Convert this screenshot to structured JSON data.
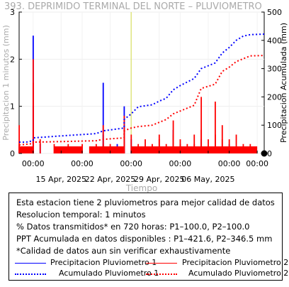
{
  "chart_data": {
    "type": "line",
    "title": "393. DEPRIMIDO TERMINAL DEL NORTE – PLUVIOMETRO",
    "xlabel": "Tiempo",
    "ylabel_left": "Precipitacion 1 minutos (mm)",
    "ylabel_right": "Precipitacion Acumulada (mm)",
    "ylim_left": [
      0,
      3
    ],
    "ylim_right": [
      0,
      500
    ],
    "left_ticks": [
      "0",
      "1",
      "2",
      "3"
    ],
    "right_ticks": [
      "0",
      "100",
      "200",
      "300",
      "400",
      "500"
    ],
    "x_range": [
      "2025-04-09",
      "2025-05-14"
    ],
    "x_ticks": [
      {
        "date": "2025-04-11",
        "top": "00:00",
        "bottom": ""
      },
      {
        "date": "2025-04-15",
        "top": "",
        "bottom": "15 Apr, 2025"
      },
      {
        "date": "2025-04-18",
        "top": "00:00",
        "bottom": ""
      },
      {
        "date": "2025-04-22",
        "top": "",
        "bottom": "22 Apr, 2025"
      },
      {
        "date": "2025-04-25",
        "top": "00:00",
        "bottom": ""
      },
      {
        "date": "2025-04-29",
        "top": "",
        "bottom": "29 Apr, 2025"
      },
      {
        "date": "2025-05-02",
        "top": "00:00",
        "bottom": ""
      },
      {
        "date": "2025-05-06",
        "top": "",
        "bottom": "06 May, 2025"
      },
      {
        "date": "2025-05-09",
        "top": "00:00",
        "bottom": ""
      },
      {
        "date": "2025-05-13",
        "top": "00:00",
        "bottom": ""
      }
    ],
    "grid": true,
    "marker_date": "2025-04-25",
    "series": [
      {
        "name": "Precipitacion Pluviometro 1",
        "axis": "left",
        "style": "bars",
        "color": "#0000ff",
        "points": [
          [
            "2025-04-09",
            0.15
          ],
          [
            "2025-04-11",
            2.5
          ],
          [
            "2025-04-11",
            1.0
          ],
          [
            "2025-04-11",
            0.3
          ],
          [
            "2025-04-12",
            0.2
          ],
          [
            "2025-04-21",
            1.5
          ],
          [
            "2025-04-21",
            0.4
          ],
          [
            "2025-04-23",
            0.2
          ],
          [
            "2025-04-24",
            0.6
          ],
          [
            "2025-04-24",
            1.0
          ],
          [
            "2025-04-25",
            0.3
          ],
          [
            "2025-05-01",
            0.5
          ],
          [
            "2025-05-02",
            0.2
          ],
          [
            "2025-05-05",
            0.3
          ],
          [
            "2025-05-09",
            0.2
          ]
        ]
      },
      {
        "name": "Precipitacion Pluviometro 2",
        "axis": "left",
        "style": "bars",
        "color": "#ff0000",
        "points": [
          [
            "2025-04-09",
            0.2
          ],
          [
            "2025-04-09",
            0.6
          ],
          [
            "2025-04-11",
            2.0
          ],
          [
            "2025-04-11",
            1.5
          ],
          [
            "2025-04-11",
            0.5
          ],
          [
            "2025-04-12",
            0.3
          ],
          [
            "2025-04-14",
            0.2
          ],
          [
            "2025-04-16",
            0.2
          ],
          [
            "2025-04-18",
            0.2
          ],
          [
            "2025-04-20",
            0.2
          ],
          [
            "2025-04-21",
            0.2
          ],
          [
            "2025-04-21",
            0.6
          ],
          [
            "2025-04-22",
            0.2
          ],
          [
            "2025-04-24",
            0.8
          ],
          [
            "2025-04-24",
            0.5
          ],
          [
            "2025-04-25",
            0.4
          ],
          [
            "2025-04-26",
            0.2
          ],
          [
            "2025-04-27",
            0.3
          ],
          [
            "2025-04-28",
            0.2
          ],
          [
            "2025-04-29",
            0.4
          ],
          [
            "2025-04-29",
            0.3
          ],
          [
            "2025-04-30",
            0.2
          ],
          [
            "2025-05-01",
            0.7
          ],
          [
            "2025-05-01",
            0.4
          ],
          [
            "2025-05-02",
            0.3
          ],
          [
            "2025-05-02",
            0.2
          ],
          [
            "2025-05-03",
            0.2
          ],
          [
            "2025-05-04",
            0.4
          ],
          [
            "2025-05-04",
            0.2
          ],
          [
            "2025-05-05",
            1.2
          ],
          [
            "2025-05-05",
            0.5
          ],
          [
            "2025-05-06",
            0.3
          ],
          [
            "2025-05-07",
            1.1
          ],
          [
            "2025-05-07",
            0.4
          ],
          [
            "2025-05-08",
            0.6
          ],
          [
            "2025-05-08",
            0.3
          ],
          [
            "2025-05-09",
            0.3
          ],
          [
            "2025-05-10",
            0.4
          ],
          [
            "2025-05-11",
            0.2
          ],
          [
            "2025-05-12",
            0.2
          ]
        ],
        "runs": [
          [
            "2025-04-09",
            "2025-04-11"
          ],
          [
            "2025-04-14",
            "2025-04-16"
          ],
          [
            "2025-04-16",
            "2025-04-18"
          ],
          [
            "2025-04-19",
            "2025-04-21"
          ],
          [
            "2025-04-21",
            "2025-04-24"
          ],
          [
            "2025-04-25",
            "2025-04-27"
          ],
          [
            "2025-04-27",
            "2025-04-30"
          ],
          [
            "2025-04-30",
            "2025-05-03"
          ],
          [
            "2025-05-03",
            "2025-05-05"
          ],
          [
            "2025-05-05",
            "2025-05-09"
          ],
          [
            "2025-05-09",
            "2025-05-11"
          ],
          [
            "2025-05-11",
            "2025-05-13"
          ]
        ],
        "run_value": 0.15
      },
      {
        "name": "Acumulado Pluviometro 1",
        "axis": "right",
        "style": "dotted",
        "color": "#0000ff",
        "points": [
          [
            "2025-04-09",
            40
          ],
          [
            "2025-04-10",
            40
          ],
          [
            "2025-04-11",
            45
          ],
          [
            "2025-04-11",
            55
          ],
          [
            "2025-04-15",
            62
          ],
          [
            "2025-04-20",
            70
          ],
          [
            "2025-04-21",
            80
          ],
          [
            "2025-04-24",
            90
          ],
          [
            "2025-04-24",
            120
          ],
          [
            "2025-04-25",
            140
          ],
          [
            "2025-04-26",
            165
          ],
          [
            "2025-04-28",
            172
          ],
          [
            "2025-04-29",
            185
          ],
          [
            "2025-04-30",
            195
          ],
          [
            "2025-05-01",
            225
          ],
          [
            "2025-05-02",
            240
          ],
          [
            "2025-05-04",
            265
          ],
          [
            "2025-05-05",
            300
          ],
          [
            "2025-05-07",
            320
          ],
          [
            "2025-05-08",
            355
          ],
          [
            "2025-05-09",
            375
          ],
          [
            "2025-05-10",
            400
          ],
          [
            "2025-05-11",
            415
          ],
          [
            "2025-05-12",
            420
          ],
          [
            "2025-05-14",
            422
          ]
        ]
      },
      {
        "name": "Acumulado Pluviometro 2",
        "axis": "right",
        "style": "dotted",
        "color": "#ff0000",
        "points": [
          [
            "2025-04-09",
            30
          ],
          [
            "2025-04-11",
            35
          ],
          [
            "2025-04-11",
            40
          ],
          [
            "2025-04-15",
            42
          ],
          [
            "2025-04-20",
            45
          ],
          [
            "2025-04-21",
            50
          ],
          [
            "2025-04-24",
            55
          ],
          [
            "2025-04-24",
            80
          ],
          [
            "2025-04-25",
            90
          ],
          [
            "2025-04-26",
            95
          ],
          [
            "2025-04-28",
            100
          ],
          [
            "2025-04-29",
            110
          ],
          [
            "2025-04-30",
            120
          ],
          [
            "2025-05-01",
            140
          ],
          [
            "2025-05-02",
            150
          ],
          [
            "2025-05-04",
            170
          ],
          [
            "2025-05-05",
            230
          ],
          [
            "2025-05-07",
            245
          ],
          [
            "2025-05-08",
            290
          ],
          [
            "2025-05-09",
            305
          ],
          [
            "2025-05-10",
            325
          ],
          [
            "2025-05-11",
            335
          ],
          [
            "2025-05-12",
            345
          ],
          [
            "2025-05-14",
            346.5
          ]
        ]
      }
    ],
    "end_marker": {
      "date": "2025-05-14",
      "value": 0,
      "axis": "left"
    }
  },
  "info": {
    "line1": "Esta estacion tiene 2 pluviometros para mejor calidad de datos",
    "line2": "Resolucion temporal: 1 minutos",
    "line3": "% Datos transmitidos* en 720 horas: P1–100.0, P2–100.0",
    "line4": "PPT Acumulada en datos disponibles : P1–421.6, P2–346.5 mm",
    "line5": "*Calidad de datos aun sin verificar exhaustivamente"
  },
  "legend": {
    "p1": "Precipitacion Pluviometro 1",
    "p2": "Precipitacion Pluviometro 2",
    "a1": "Acumulado Pluviometro 1",
    "a2": "Acumulado Pluviometro 2",
    "p1_color": "#0000ff",
    "p2_color": "#ff0000"
  }
}
